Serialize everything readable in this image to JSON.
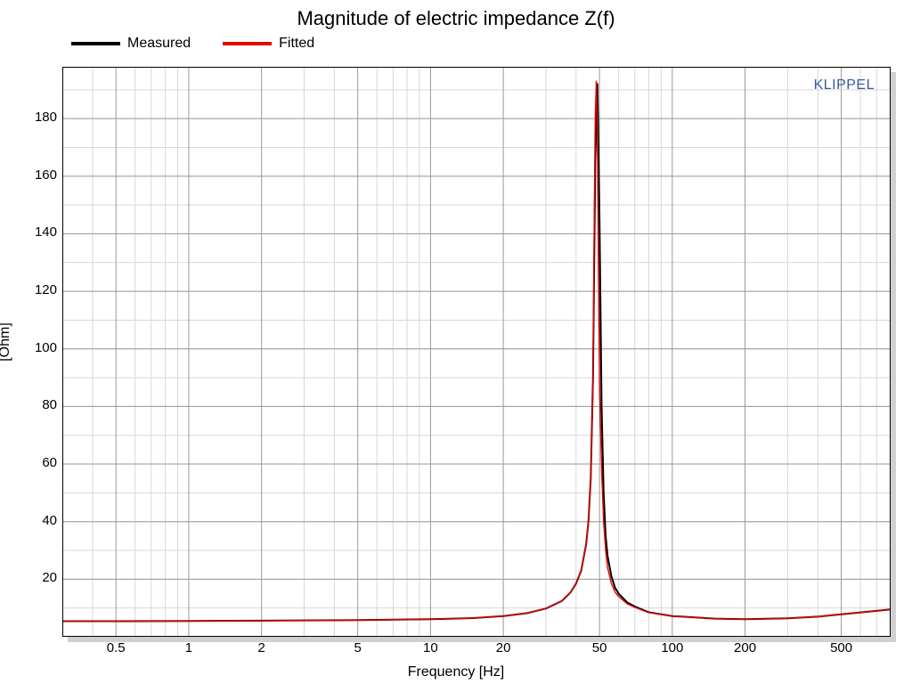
{
  "chart": {
    "type": "line",
    "title": "Magnitude of electric impedance Z(f)",
    "xlabel": "Frequency [Hz]",
    "ylabel": "[Ohm]",
    "watermark": "KLIPPEL",
    "background_color": "#ffffff",
    "shadow_color": "#d0d0d0",
    "plot_border_color": "#000000",
    "grid_minor_color": "#d7d7d7",
    "grid_major_color": "#9a9a9a",
    "title_fontsize": 22,
    "label_fontsize": 16,
    "tick_fontsize": 15,
    "x_scale": "log",
    "y_scale": "linear",
    "xlim": [
      0.3,
      800
    ],
    "ylim": [
      0,
      198
    ],
    "x_major_ticks": [
      0.5,
      1,
      2,
      5,
      10,
      20,
      50,
      100,
      200,
      500
    ],
    "x_minor_ticks": [
      0.3,
      0.4,
      0.6,
      0.7,
      0.8,
      0.9,
      3,
      4,
      6,
      7,
      8,
      9,
      30,
      40,
      60,
      70,
      80,
      90,
      300,
      400,
      600,
      700,
      800
    ],
    "y_major_ticks": [
      20,
      40,
      60,
      80,
      100,
      120,
      140,
      160,
      180
    ],
    "legend": {
      "items": [
        {
          "label": "Measured",
          "color": "#000000",
          "line_width": 4
        },
        {
          "label": "Fitted",
          "color": "#e60000",
          "line_width": 4
        }
      ]
    },
    "series": [
      {
        "name": "Measured",
        "color": "#000000",
        "line_width": 2.0,
        "x": [
          0.3,
          0.5,
          1,
          2,
          5,
          10,
          15,
          20,
          25,
          30,
          35,
          38,
          40,
          42,
          44,
          45,
          46,
          47,
          48,
          49,
          50,
          51,
          52,
          53,
          54,
          56,
          58,
          60,
          65,
          70,
          80,
          100,
          150,
          200,
          300,
          400,
          500,
          700,
          800
        ],
        "y": [
          5.4,
          5.4,
          5.5,
          5.6,
          5.8,
          6.1,
          6.5,
          7.2,
          8.2,
          9.8,
          12.5,
          15.5,
          18.5,
          23,
          32,
          40,
          55,
          90,
          165,
          192,
          145,
          80,
          50,
          35,
          28,
          21,
          17,
          15,
          12,
          10.5,
          8.5,
          7.2,
          6.3,
          6.1,
          6.4,
          7.0,
          7.8,
          9.0,
          9.5
        ]
      },
      {
        "name": "Fitted",
        "color": "#e60000",
        "line_width": 1.4,
        "x": [
          0.3,
          0.5,
          1,
          2,
          5,
          10,
          15,
          20,
          25,
          30,
          35,
          38,
          40,
          42,
          44,
          45,
          46,
          47,
          47.5,
          48,
          48.5,
          49,
          49.5,
          50,
          51,
          52,
          53,
          54,
          56,
          58,
          60,
          65,
          70,
          80,
          100,
          150,
          200,
          300,
          400,
          500,
          700,
          800
        ],
        "y": [
          5.4,
          5.4,
          5.5,
          5.6,
          5.8,
          6.1,
          6.5,
          7.2,
          8.2,
          9.8,
          12.5,
          15.5,
          18.5,
          23,
          32,
          40,
          55,
          88,
          140,
          180,
          193,
          175,
          125,
          88,
          58,
          40,
          30,
          24,
          18.5,
          15.5,
          14,
          11.5,
          10.2,
          8.4,
          7.2,
          6.3,
          6.1,
          6.4,
          7.0,
          7.8,
          9.0,
          9.5
        ]
      }
    ]
  }
}
